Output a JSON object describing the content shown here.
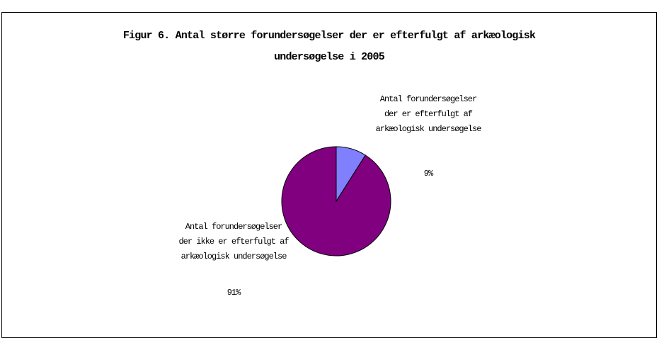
{
  "chart_data": {
    "type": "pie",
    "title": "Figur 6. Antal større forundersøgelser der er efterfulgt af arkæologisk undersøgelse i 2005",
    "categories": [
      "Antal forundersøgelser der er efterfulgt af arkæologisk undersøgelse",
      "Antal forundersøgelser der ikke er efterfulgt af arkæologisk undersøgelse"
    ],
    "values": [
      9,
      91
    ],
    "value_labels": [
      "9%",
      "91%"
    ],
    "colors": [
      "#8080ff",
      "#800080"
    ]
  }
}
